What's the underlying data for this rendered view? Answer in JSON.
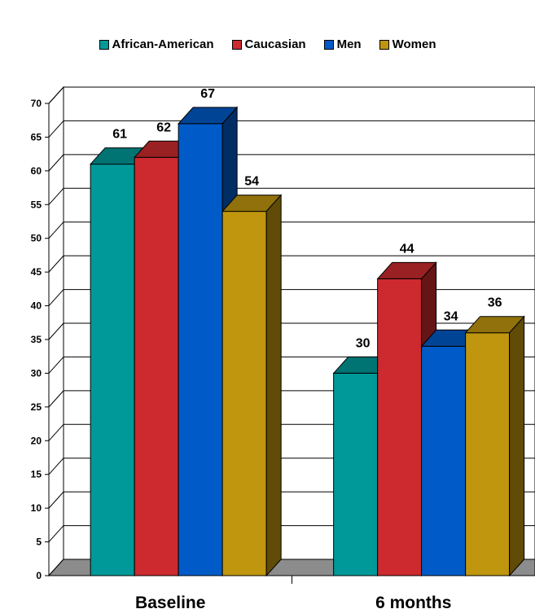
{
  "chart_data": {
    "type": "bar",
    "title": "",
    "xlabel": "",
    "ylabel": "",
    "categories": [
      "Baseline",
      "6 months"
    ],
    "series": [
      {
        "name": "African-American",
        "values": [
          61,
          30
        ],
        "color": "#009999"
      },
      {
        "name": "Caucasian",
        "values": [
          62,
          44
        ],
        "color": "#cc2a2e"
      },
      {
        "name": "Men",
        "values": [
          67,
          34
        ],
        "color": "#005bc8"
      },
      {
        "name": "Women",
        "values": [
          54,
          36
        ],
        "color": "#c0960e"
      }
    ],
    "ylim": [
      0,
      70
    ],
    "yticks": [
      0,
      5,
      10,
      15,
      20,
      25,
      30,
      35,
      40,
      45,
      50,
      55,
      60,
      65,
      70
    ],
    "grid": true,
    "legend_position": "top",
    "style": "3d"
  }
}
